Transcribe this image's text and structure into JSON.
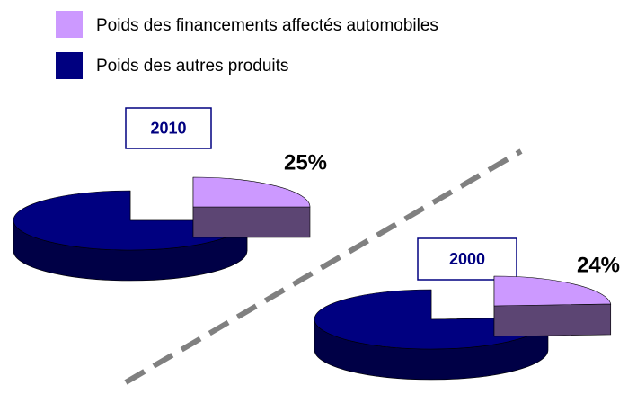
{
  "chart_data": [
    {
      "type": "pie",
      "title": "2010",
      "categories": [
        "Poids des financements affectés automobiles",
        "Poids des autres produits"
      ],
      "values": [
        25,
        75
      ],
      "value_labels": [
        "25%",
        null
      ],
      "colors": [
        "#cc99ff",
        "#000080"
      ]
    },
    {
      "type": "pie",
      "title": "2000",
      "categories": [
        "Poids des financements affectés automobiles",
        "Poids des autres produits"
      ],
      "values": [
        24,
        76
      ],
      "value_labels": [
        "24%",
        null
      ],
      "colors": [
        "#cc99ff",
        "#000080"
      ]
    }
  ]
}
